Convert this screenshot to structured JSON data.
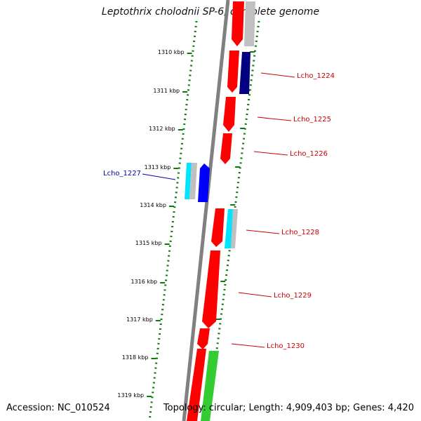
{
  "title": "Leptothrix cholodnii SP-6, complete genome",
  "footer": {
    "accession": "Accession: NC_010524",
    "topology": "Topology: circular; Length: 4,909,403 bp; Genes: 4,420"
  },
  "scale": {
    "labels": [
      "1310 kbp",
      "1311 kbp",
      "1312 kbp",
      "1313 kbp",
      "1314 kbp",
      "1315 kbp",
      "1316 kbp",
      "1317 kbp",
      "1318 kbp",
      "1319 kbp"
    ]
  },
  "genes": [
    {
      "label": "Lcho_1224",
      "color": "#cc0000"
    },
    {
      "label": "Lcho_1225",
      "color": "#cc0000"
    },
    {
      "label": "Lcho_1226",
      "color": "#cc0000"
    },
    {
      "label": "Lcho_1227",
      "color": "#0000aa"
    },
    {
      "label": "Lcho_1228",
      "color": "#cc0000"
    },
    {
      "label": "Lcho_1229",
      "color": "#cc0000"
    },
    {
      "label": "Lcho_1230",
      "color": "#cc0000"
    }
  ],
  "colors": {
    "backbone": "#808080",
    "ruler": "#0a7a0a",
    "red": "#ff0000",
    "blue": "#0000ff",
    "navy": "#000080",
    "cyan": "#00e5ff",
    "gray": "#c0c0c0",
    "green": "#33cc33"
  }
}
